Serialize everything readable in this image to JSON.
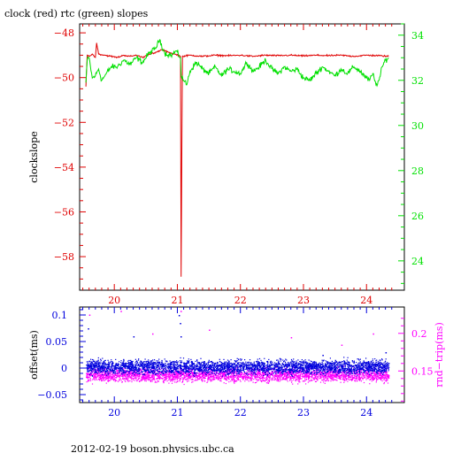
{
  "title": "clock (red) rtc (green) slopes",
  "footer": "2012-02-19  boson.physics.ubc.ca",
  "colors": {
    "clock": "#e00000",
    "rtc": "#00e000",
    "offset": "#0000dd",
    "roundtrip": "#ff00ff",
    "axis": "#000000"
  },
  "chart_data": [
    {
      "type": "line",
      "title": "clock (red) rtc (green) slopes",
      "x_ticks": [
        20,
        21,
        22,
        23,
        24
      ],
      "xlim": [
        19.45,
        24.6
      ],
      "y_left": {
        "label": "clockslope",
        "ticks": [
          -48,
          -50,
          -52,
          -54,
          -56,
          -58
        ],
        "ylim": [
          -59.5,
          -47.6
        ]
      },
      "y_right": {
        "ticks": [
          34,
          32,
          30,
          28,
          26,
          24
        ],
        "ylim": [
          22.7,
          34.5
        ]
      },
      "series": [
        {
          "name": "clock",
          "axis": "left",
          "points": [
            [
              19.55,
              -50.4
            ],
            [
              19.57,
              -49.0
            ],
            [
              19.6,
              -49.05
            ],
            [
              19.65,
              -48.95
            ],
            [
              19.7,
              -49.1
            ],
            [
              19.72,
              -48.45
            ],
            [
              19.75,
              -48.95
            ],
            [
              19.85,
              -49.0
            ],
            [
              19.95,
              -49.05
            ],
            [
              20.05,
              -49.1
            ],
            [
              20.15,
              -49.0
            ],
            [
              20.25,
              -49.05
            ],
            [
              20.35,
              -49.0
            ],
            [
              20.45,
              -49.1
            ],
            [
              20.55,
              -48.95
            ],
            [
              20.65,
              -48.9
            ],
            [
              20.75,
              -48.75
            ],
            [
              20.85,
              -48.85
            ],
            [
              20.95,
              -48.95
            ],
            [
              21.02,
              -49.0
            ],
            [
              21.05,
              -49.05
            ],
            [
              21.06,
              -58.9
            ],
            [
              21.08,
              -49.05
            ],
            [
              21.2,
              -49.0
            ],
            [
              21.4,
              -49.05
            ],
            [
              21.6,
              -49.0
            ],
            [
              21.8,
              -49.02
            ],
            [
              22.0,
              -49.0
            ],
            [
              22.2,
              -49.05
            ],
            [
              22.4,
              -49.0
            ],
            [
              22.6,
              -49.02
            ],
            [
              22.8,
              -49.0
            ],
            [
              23.0,
              -49.03
            ],
            [
              23.2,
              -49.0
            ],
            [
              23.4,
              -49.02
            ],
            [
              23.6,
              -49.0
            ],
            [
              23.8,
              -49.05
            ],
            [
              24.0,
              -49.0
            ],
            [
              24.2,
              -49.02
            ],
            [
              24.35,
              -49.05
            ]
          ]
        },
        {
          "name": "rtc",
          "axis": "right",
          "points": [
            [
              19.55,
              31.9
            ],
            [
              19.57,
              32.9
            ],
            [
              19.6,
              33.0
            ],
            [
              19.65,
              32.1
            ],
            [
              19.7,
              32.2
            ],
            [
              19.75,
              32.5
            ],
            [
              19.8,
              32.0
            ],
            [
              19.85,
              32.2
            ],
            [
              19.95,
              32.6
            ],
            [
              20.05,
              32.6
            ],
            [
              20.15,
              32.9
            ],
            [
              20.25,
              32.7
            ],
            [
              20.35,
              33.0
            ],
            [
              20.45,
              32.8
            ],
            [
              20.55,
              33.2
            ],
            [
              20.65,
              33.4
            ],
            [
              20.72,
              33.8
            ],
            [
              20.8,
              33.2
            ],
            [
              20.9,
              33.1
            ],
            [
              20.98,
              33.3
            ],
            [
              21.05,
              33.0
            ],
            [
              21.06,
              32.2
            ],
            [
              21.1,
              32.0
            ],
            [
              21.15,
              31.8
            ],
            [
              21.2,
              32.4
            ],
            [
              21.3,
              32.8
            ],
            [
              21.4,
              32.5
            ],
            [
              21.5,
              32.3
            ],
            [
              21.6,
              32.6
            ],
            [
              21.7,
              32.2
            ],
            [
              21.8,
              32.5
            ],
            [
              21.9,
              32.4
            ],
            [
              22.0,
              32.3
            ],
            [
              22.1,
              32.8
            ],
            [
              22.2,
              32.4
            ],
            [
              22.3,
              32.6
            ],
            [
              22.4,
              32.9
            ],
            [
              22.5,
              32.5
            ],
            [
              22.6,
              32.3
            ],
            [
              22.7,
              32.6
            ],
            [
              22.8,
              32.4
            ],
            [
              22.9,
              32.5
            ],
            [
              23.0,
              32.1
            ],
            [
              23.1,
              32.0
            ],
            [
              23.2,
              32.3
            ],
            [
              23.3,
              32.6
            ],
            [
              23.4,
              32.4
            ],
            [
              23.5,
              32.2
            ],
            [
              23.6,
              32.5
            ],
            [
              23.7,
              32.3
            ],
            [
              23.8,
              32.6
            ],
            [
              23.9,
              32.4
            ],
            [
              24.0,
              32.1
            ],
            [
              24.05,
              32.0
            ],
            [
              24.1,
              32.3
            ],
            [
              24.15,
              31.8
            ],
            [
              24.2,
              32.0
            ],
            [
              24.25,
              32.6
            ],
            [
              24.3,
              32.9
            ],
            [
              24.35,
              33.0
            ]
          ]
        }
      ]
    },
    {
      "type": "scatter",
      "x_ticks": [
        20,
        21,
        22,
        23,
        24
      ],
      "xlim": [
        19.45,
        24.6
      ],
      "y_left": {
        "label": "offset(ms)",
        "ticks": [
          0.1,
          0.05,
          0,
          -0.05
        ],
        "tick_labels": [
          "0.1",
          "0.05",
          "0",
          "−0.05"
        ],
        "ylim": [
          -0.065,
          0.115
        ]
      },
      "y_right": {
        "label": "rnd−trip(ms)",
        "ticks": [
          0.2,
          0.15
        ],
        "ylim": [
          0.108,
          0.235
        ]
      },
      "series": [
        {
          "name": "offset",
          "axis": "left",
          "x_range": [
            19.55,
            24.35
          ],
          "center": 0.003,
          "spread": 0.012,
          "outliers": [
            [
              19.58,
              0.075
            ],
            [
              20.3,
              0.06
            ],
            [
              21.02,
              0.1
            ],
            [
              21.04,
              0.085
            ],
            [
              21.05,
              0.06
            ],
            [
              23.3,
              0.025
            ],
            [
              24.3,
              0.03
            ]
          ]
        },
        {
          "name": "rnd-trip",
          "axis": "right",
          "x_range": [
            19.55,
            24.35
          ],
          "center": 0.145,
          "spread": 0.008,
          "outliers": [
            [
              19.6,
              0.225
            ],
            [
              20.1,
              0.23
            ],
            [
              20.6,
              0.2
            ],
            [
              21.05,
              0.23
            ],
            [
              21.5,
              0.205
            ],
            [
              22.8,
              0.195
            ],
            [
              23.6,
              0.185
            ],
            [
              24.1,
              0.2
            ]
          ]
        }
      ]
    }
  ]
}
